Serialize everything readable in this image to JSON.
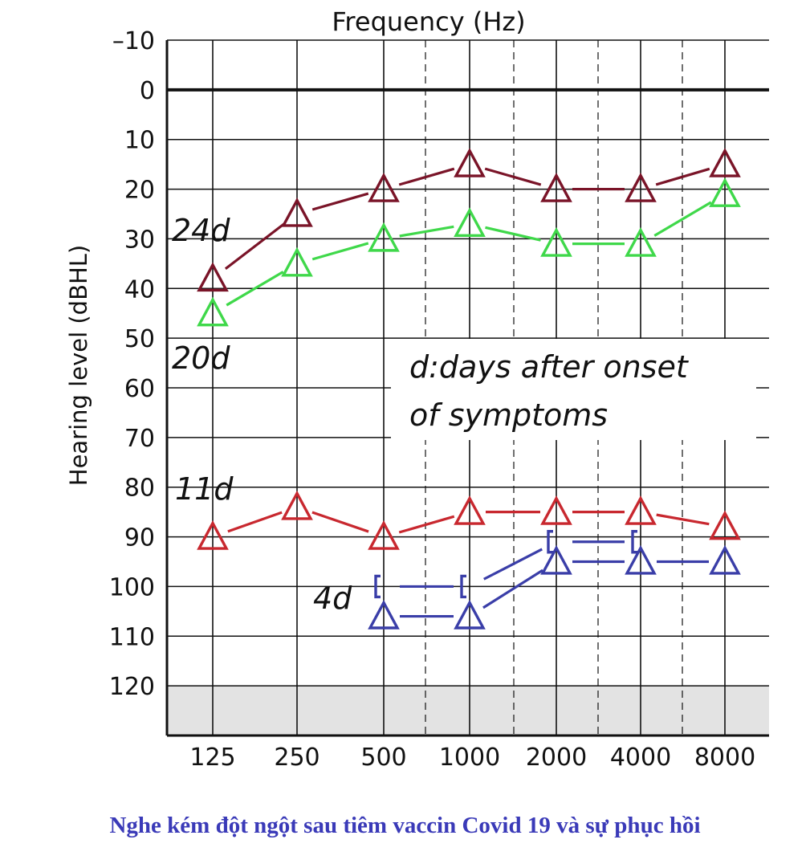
{
  "chart_data": {
    "type": "line",
    "title": "Frequency (Hz)",
    "xlabel": "Frequency (Hz)",
    "ylabel": "Hearing level (dBHL)",
    "categories": [
      "125",
      "250",
      "500",
      "1000",
      "2000",
      "4000",
      "8000"
    ],
    "ylim": [
      -10,
      130
    ],
    "y_ticks": [
      "-10",
      "0",
      "10",
      "20",
      "30",
      "40",
      "50",
      "60",
      "70",
      "80",
      "90",
      "100",
      "110",
      "120"
    ],
    "y_inverted": true,
    "grid": true,
    "shaded_region": [
      120,
      130
    ],
    "series": [
      {
        "name": "24d",
        "color": "#7a1428",
        "marker": "triangle",
        "x": [
          "125",
          "250",
          "500",
          "1000",
          "2000",
          "4000",
          "8000"
        ],
        "values": [
          38,
          25,
          20,
          15,
          20,
          20,
          15
        ]
      },
      {
        "name": "20d",
        "color": "#3fd84a",
        "marker": "triangle",
        "x": [
          "125",
          "250",
          "500",
          "1000",
          "2000",
          "4000",
          "8000"
        ],
        "values": [
          45,
          35,
          30,
          27,
          31,
          31,
          21
        ]
      },
      {
        "name": "11d",
        "color": "#c8282f",
        "marker": "triangle",
        "x": [
          "125",
          "250",
          "500",
          "1000",
          "2000",
          "4000",
          "8000"
        ],
        "values": [
          90,
          84,
          90,
          85,
          85,
          85,
          88
        ]
      },
      {
        "name": "4d",
        "color": "#3a3ea8",
        "marker": "triangle",
        "x": [
          "500",
          "1000",
          "2000",
          "4000",
          "8000"
        ],
        "values": [
          106,
          106,
          95,
          95,
          95
        ]
      },
      {
        "name": "",
        "color": "#3a3ea8",
        "marker": "bracket",
        "x": [
          "500",
          "1000",
          "2000",
          "4000"
        ],
        "values": [
          100,
          100,
          91,
          91
        ]
      }
    ],
    "annotations": [
      "24d",
      "20d",
      "11d",
      "4d"
    ],
    "legend_note": "d:days after onset of symptoms"
  },
  "caption": "Nghe kém đột ngột sau tiêm vaccin Covid 19 và sự phục hồi"
}
